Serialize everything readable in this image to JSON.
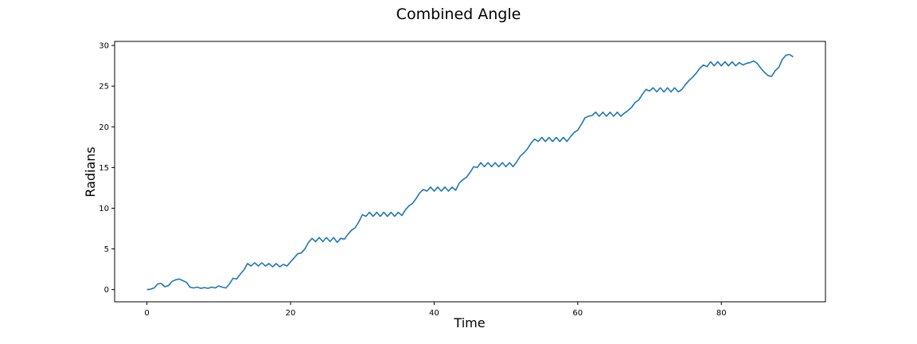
{
  "chart_data": {
    "type": "line",
    "title": "Combined Angle",
    "xlabel": "Time",
    "ylabel": "Radians",
    "xlim": [
      -4.5,
      94.5
    ],
    "ylim": [
      -1.5,
      30.5
    ],
    "xticks": [
      0,
      20,
      40,
      60,
      80
    ],
    "yticks": [
      0,
      5,
      10,
      15,
      20,
      25,
      30
    ],
    "grid": false,
    "series": [
      {
        "color": "#1f77b4",
        "x": [
          0,
          0.5,
          1,
          1.5,
          2,
          2.5,
          3,
          3.5,
          4,
          4.5,
          5,
          5.5,
          6,
          6.5,
          7,
          7.5,
          8,
          8.5,
          9,
          9.5,
          10,
          10.5,
          11,
          11.5,
          12,
          12.5,
          13,
          13.5,
          14,
          14.5,
          15,
          15.5,
          16,
          16.5,
          17,
          17.5,
          18,
          18.5,
          19,
          19.5,
          20,
          20.5,
          21,
          21.5,
          22,
          22.5,
          23,
          23.5,
          24,
          24.5,
          25,
          25.5,
          26,
          26.5,
          27,
          27.5,
          28,
          28.5,
          29,
          29.5,
          30,
          30.5,
          31,
          31.5,
          32,
          32.5,
          33,
          33.5,
          34,
          34.5,
          35,
          35.5,
          36,
          36.5,
          37,
          37.5,
          38,
          38.5,
          39,
          39.5,
          40,
          40.5,
          41,
          41.5,
          42,
          42.5,
          43,
          43.5,
          44,
          44.5,
          45,
          45.5,
          46,
          46.5,
          47,
          47.5,
          48,
          48.5,
          49,
          49.5,
          50,
          50.5,
          51,
          51.5,
          52,
          52.5,
          53,
          53.5,
          54,
          54.5,
          55,
          55.5,
          56,
          56.5,
          57,
          57.5,
          58,
          58.5,
          59,
          59.5,
          60,
          60.5,
          61,
          61.5,
          62,
          62.5,
          63,
          63.5,
          64,
          64.5,
          65,
          65.5,
          66,
          66.5,
          67,
          67.5,
          68,
          68.5,
          69,
          69.5,
          70,
          70.5,
          71,
          71.5,
          72,
          72.5,
          73,
          73.5,
          74,
          74.5,
          75,
          75.5,
          76,
          76.5,
          77,
          77.5,
          78,
          78.5,
          79,
          79.5,
          80,
          80.5,
          81,
          81.5,
          82,
          82.5,
          83,
          83.5,
          84,
          84.5,
          85,
          85.5,
          86,
          86.5,
          87,
          87.5,
          88,
          88.5,
          89,
          89.5,
          90
        ],
        "y": [
          0,
          0.05,
          0.2,
          0.7,
          0.75,
          0.35,
          0.5,
          1.0,
          1.2,
          1.3,
          1.1,
          0.9,
          0.3,
          0.2,
          0.3,
          0.15,
          0.25,
          0.15,
          0.3,
          0.2,
          0.45,
          0.3,
          0.2,
          0.7,
          1.4,
          1.3,
          1.9,
          2.4,
          3.2,
          2.9,
          3.3,
          2.9,
          3.3,
          2.9,
          3.2,
          2.8,
          3.2,
          2.8,
          3.1,
          2.9,
          3.4,
          3.9,
          4.4,
          4.5,
          5.0,
          5.8,
          6.3,
          5.9,
          6.4,
          5.9,
          6.4,
          5.9,
          6.4,
          5.8,
          6.3,
          6.2,
          6.8,
          7.3,
          7.6,
          8.3,
          9.2,
          9.0,
          9.5,
          9.0,
          9.5,
          9.0,
          9.5,
          9.0,
          9.5,
          9.0,
          9.5,
          9.1,
          9.8,
          10.3,
          10.6,
          11.2,
          11.9,
          12.3,
          12.1,
          12.6,
          12.1,
          12.6,
          12.1,
          12.6,
          12.1,
          12.6,
          12.2,
          13.1,
          13.5,
          13.8,
          14.4,
          15.1,
          15.0,
          15.6,
          15.1,
          15.6,
          15.1,
          15.6,
          15.1,
          15.6,
          15.1,
          15.6,
          15.1,
          15.7,
          16.4,
          16.8,
          17.3,
          18.0,
          18.5,
          18.2,
          18.7,
          18.2,
          18.7,
          18.2,
          18.7,
          18.2,
          18.7,
          18.2,
          18.8,
          19.3,
          19.6,
          20.3,
          21.1,
          21.3,
          21.4,
          21.8,
          21.3,
          21.8,
          21.3,
          21.8,
          21.3,
          21.8,
          21.3,
          21.7,
          22.0,
          22.4,
          23.0,
          23.3,
          24.0,
          24.6,
          24.4,
          24.8,
          24.3,
          24.8,
          24.3,
          24.8,
          24.3,
          24.8,
          24.3,
          24.6,
          25.2,
          25.7,
          26.1,
          26.6,
          27.2,
          27.6,
          27.4,
          28.0,
          27.5,
          28.0,
          27.5,
          28.0,
          27.5,
          28.0,
          27.5,
          27.9,
          27.6,
          27.8,
          27.9,
          28.1,
          27.8,
          27.2,
          26.7,
          26.3,
          26.2,
          26.9,
          27.3,
          28.3,
          28.8,
          28.9,
          28.6
        ]
      }
    ]
  }
}
